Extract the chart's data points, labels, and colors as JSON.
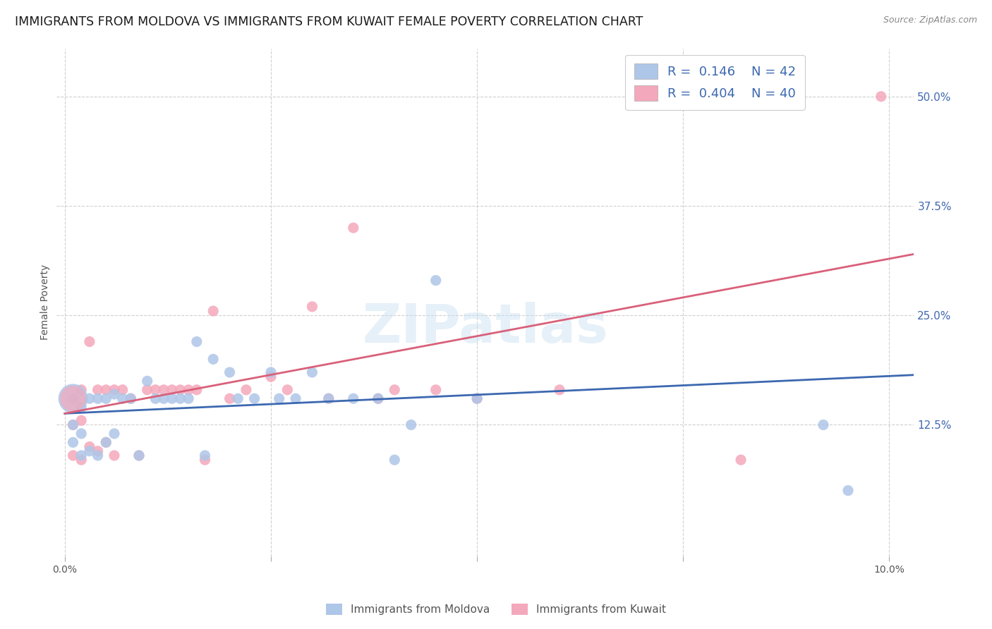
{
  "title": "IMMIGRANTS FROM MOLDOVA VS IMMIGRANTS FROM KUWAIT FEMALE POVERTY CORRELATION CHART",
  "source": "Source: ZipAtlas.com",
  "ylabel": "Female Poverty",
  "ytick_labels": [
    "12.5%",
    "25.0%",
    "37.5%",
    "50.0%"
  ],
  "ytick_values": [
    0.125,
    0.25,
    0.375,
    0.5
  ],
  "xlim": [
    -0.001,
    0.103
  ],
  "ylim": [
    -0.025,
    0.555
  ],
  "legend_r_moldova": "0.146",
  "legend_n_moldova": "42",
  "legend_r_kuwait": "0.404",
  "legend_n_kuwait": "40",
  "color_moldova": "#aec6e8",
  "color_kuwait": "#f4a8bb",
  "color_trend_moldova": "#3c68b0",
  "color_trend_kuwait": "#d9607a",
  "background_color": "#ffffff",
  "grid_color": "#d0d0d0",
  "watermark": "ZIPatlas",
  "moldova_x": [
    0.001,
    0.001,
    0.001,
    0.002,
    0.002,
    0.002,
    0.003,
    0.003,
    0.004,
    0.004,
    0.005,
    0.005,
    0.006,
    0.006,
    0.007,
    0.008,
    0.009,
    0.01,
    0.011,
    0.012,
    0.013,
    0.014,
    0.015,
    0.016,
    0.017,
    0.018,
    0.02,
    0.021,
    0.023,
    0.025,
    0.026,
    0.028,
    0.03,
    0.032,
    0.035,
    0.038,
    0.04,
    0.042,
    0.045,
    0.05,
    0.092,
    0.095
  ],
  "moldova_y": [
    0.155,
    0.125,
    0.105,
    0.145,
    0.115,
    0.09,
    0.155,
    0.095,
    0.155,
    0.09,
    0.155,
    0.105,
    0.16,
    0.115,
    0.155,
    0.155,
    0.09,
    0.175,
    0.155,
    0.155,
    0.155,
    0.155,
    0.155,
    0.22,
    0.09,
    0.2,
    0.185,
    0.155,
    0.155,
    0.185,
    0.155,
    0.155,
    0.185,
    0.155,
    0.155,
    0.155,
    0.085,
    0.125,
    0.29,
    0.155,
    0.125,
    0.05
  ],
  "kuwait_x": [
    0.001,
    0.001,
    0.001,
    0.002,
    0.002,
    0.002,
    0.003,
    0.003,
    0.004,
    0.004,
    0.005,
    0.005,
    0.006,
    0.006,
    0.007,
    0.008,
    0.009,
    0.01,
    0.011,
    0.012,
    0.013,
    0.014,
    0.015,
    0.016,
    0.017,
    0.018,
    0.02,
    0.022,
    0.025,
    0.027,
    0.03,
    0.032,
    0.035,
    0.038,
    0.04,
    0.045,
    0.05,
    0.06,
    0.082,
    0.099
  ],
  "kuwait_y": [
    0.155,
    0.125,
    0.09,
    0.165,
    0.13,
    0.085,
    0.22,
    0.1,
    0.165,
    0.095,
    0.165,
    0.105,
    0.165,
    0.09,
    0.165,
    0.155,
    0.09,
    0.165,
    0.165,
    0.165,
    0.165,
    0.165,
    0.165,
    0.165,
    0.085,
    0.255,
    0.155,
    0.165,
    0.18,
    0.165,
    0.26,
    0.155,
    0.35,
    0.155,
    0.165,
    0.165,
    0.155,
    0.165,
    0.085,
    0.5
  ],
  "moldova_trend_x": [
    0.0,
    0.103
  ],
  "moldova_trend_y": [
    0.138,
    0.182
  ],
  "kuwait_trend_x": [
    0.0,
    0.103
  ],
  "kuwait_trend_y": [
    0.138,
    0.32
  ]
}
